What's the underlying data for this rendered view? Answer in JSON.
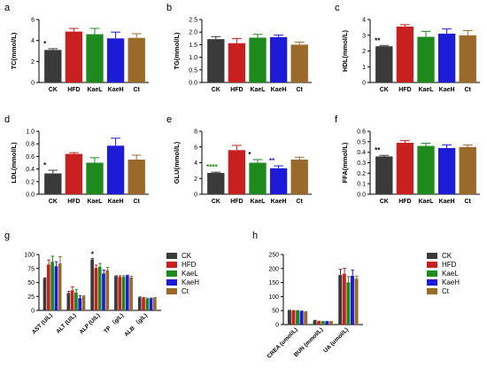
{
  "colors": {
    "CK": "#3a3a3a",
    "HFD": "#c8201e",
    "KaeL": "#1e8a1e",
    "KaeH": "#1c1cd6",
    "Ct": "#9a6a2a",
    "axis": "#000000",
    "star_black": "#000000",
    "star_green": "#1e8a1e",
    "star_blue": "#1c1cd6"
  },
  "chart_data": [
    {
      "id": "a",
      "panel_label": "a",
      "type": "bar",
      "categories": [
        "CK",
        "HFD",
        "KaeL",
        "KaeH",
        "Ct"
      ],
      "values": [
        3.1,
        4.85,
        4.6,
        4.2,
        4.25
      ],
      "errors": [
        0.12,
        0.3,
        0.55,
        0.6,
        0.4
      ],
      "ylabel": "TC(mmol/L)",
      "ylim": [
        0,
        6
      ],
      "yticks": [
        "0",
        "2",
        "4",
        "6"
      ],
      "tick_values": [
        0,
        2,
        4,
        6
      ],
      "annotations": [
        {
          "category": "CK",
          "text": "*",
          "color": "black"
        }
      ]
    },
    {
      "id": "b",
      "panel_label": "b",
      "type": "bar",
      "categories": [
        "CK",
        "HFD",
        "KaeL",
        "KaeH",
        "Ct"
      ],
      "values": [
        1.72,
        1.56,
        1.78,
        1.8,
        1.5
      ],
      "errors": [
        0.1,
        0.18,
        0.13,
        0.08,
        0.1
      ],
      "ylabel": "TG(mmol/L)",
      "ylim": [
        0,
        2.5
      ],
      "yticks": [
        "0.0",
        "0.5",
        "1.0",
        "1.5",
        "2.0",
        "2.5"
      ],
      "tick_values": [
        0,
        0.5,
        1,
        1.5,
        2,
        2.5
      ],
      "annotations": []
    },
    {
      "id": "c",
      "panel_label": "c",
      "type": "bar",
      "categories": [
        "CK",
        "HFD",
        "KaeL",
        "KaeH",
        "Ct"
      ],
      "values": [
        2.3,
        3.55,
        2.9,
        3.1,
        3.0
      ],
      "errors": [
        0.05,
        0.12,
        0.35,
        0.3,
        0.3
      ],
      "ylabel": "HDL(mmol/L)",
      "ylim": [
        0,
        4
      ],
      "yticks": [
        "0",
        "1",
        "2",
        "3",
        "4"
      ],
      "tick_values": [
        0,
        1,
        2,
        3,
        4
      ],
      "annotations": [
        {
          "category": "CK",
          "text": "**",
          "color": "black"
        }
      ]
    },
    {
      "id": "d",
      "panel_label": "d",
      "type": "bar",
      "categories": [
        "CK",
        "HFD",
        "KaeL",
        "KaeH",
        "Ct"
      ],
      "values": [
        0.33,
        0.64,
        0.5,
        0.77,
        0.55
      ],
      "errors": [
        0.05,
        0.02,
        0.08,
        0.12,
        0.07
      ],
      "ylabel": "LDL(mmol/L)",
      "ylim": [
        0,
        1.0
      ],
      "yticks": [
        "0.0",
        "0.2",
        "0.4",
        "0.6",
        "0.8",
        "1.0"
      ],
      "tick_values": [
        0,
        0.2,
        0.4,
        0.6,
        0.8,
        1.0
      ],
      "annotations": [
        {
          "category": "CK",
          "text": "*",
          "color": "black"
        }
      ]
    },
    {
      "id": "e",
      "panel_label": "e",
      "type": "bar",
      "categories": [
        "CK",
        "HFD",
        "KaeL",
        "KaeH",
        "Ct"
      ],
      "values": [
        2.7,
        5.6,
        4.0,
        3.3,
        4.4
      ],
      "errors": [
        0.1,
        0.6,
        0.4,
        0.3,
        0.3
      ],
      "ylabel": "GLU(mmol/L)",
      "ylim": [
        0,
        8
      ],
      "yticks": [
        "0",
        "2",
        "4",
        "6",
        "8"
      ],
      "tick_values": [
        0,
        2,
        4,
        6,
        8
      ],
      "annotations": [
        {
          "category": "CK",
          "text": "****",
          "color": "green"
        },
        {
          "category": "KaeL",
          "text": "*",
          "color": "black"
        },
        {
          "category": "KaeH",
          "text": "**",
          "color": "blue"
        }
      ]
    },
    {
      "id": "f",
      "panel_label": "f",
      "type": "bar",
      "categories": [
        "CK",
        "HFD",
        "KaeL",
        "KaeH",
        "Ct"
      ],
      "values": [
        0.36,
        0.49,
        0.46,
        0.44,
        0.45
      ],
      "errors": [
        0.01,
        0.02,
        0.025,
        0.03,
        0.02
      ],
      "ylabel": "FFA(mmol/L)",
      "ylim": [
        0,
        0.6
      ],
      "yticks": [
        "0.0",
        "0.1",
        "0.2",
        "0.3",
        "0.4",
        "0.5",
        "0.6"
      ],
      "tick_values": [
        0,
        0.1,
        0.2,
        0.3,
        0.4,
        0.5,
        0.6
      ],
      "annotations": [
        {
          "category": "CK",
          "text": "**",
          "color": "black"
        }
      ]
    },
    {
      "id": "g",
      "panel_label": "g",
      "type": "bar",
      "categories": [
        "AST (U/L)",
        "ALT (U/L)",
        "ALP (U/L)",
        "TP （g/L)",
        "ALB （g/L)"
      ],
      "series": [
        {
          "name": "CK",
          "values": [
            57,
            31,
            91,
            61,
            23
          ],
          "errors": [
            1,
            3,
            2,
            1,
            1
          ]
        },
        {
          "name": "HFD",
          "values": [
            82,
            36,
            76,
            60,
            22
          ],
          "errors": [
            8,
            6,
            5,
            2,
            1
          ]
        },
        {
          "name": "KaeL",
          "values": [
            87,
            32,
            78,
            60,
            21
          ],
          "errors": [
            10,
            5,
            6,
            2,
            1
          ]
        },
        {
          "name": "KaeH",
          "values": [
            79,
            22,
            66,
            62,
            21
          ],
          "errors": [
            8,
            4,
            6,
            1,
            1
          ]
        },
        {
          "name": "Ct",
          "values": [
            84,
            25,
            72,
            59,
            22
          ],
          "errors": [
            12,
            1,
            5,
            2,
            1
          ]
        }
      ],
      "ylabel": "",
      "ylim": [
        0,
        100
      ],
      "yticks": [
        "0",
        "25",
        "50",
        "75",
        "100"
      ],
      "tick_values": [
        0,
        25,
        50,
        75,
        100
      ],
      "annotations": [
        {
          "category": "ALP (U/L)",
          "series": "CK",
          "text": "*",
          "color": "black"
        }
      ],
      "legend": [
        "CK",
        "HFD",
        "KaeL",
        "KaeH",
        "Ct"
      ]
    },
    {
      "id": "h",
      "panel_label": "h",
      "type": "bar",
      "categories": [
        "CREA (umol/L)",
        "BUN (mmol/L)",
        "UA (umol/L)"
      ],
      "series": [
        {
          "name": "CK",
          "values": [
            50,
            14,
            177
          ],
          "errors": [
            1,
            1,
            20
          ]
        },
        {
          "name": "HFD",
          "values": [
            49,
            11,
            181
          ],
          "errors": [
            1,
            1,
            20
          ]
        },
        {
          "name": "KaeL",
          "values": [
            49,
            10,
            151
          ],
          "errors": [
            1,
            1,
            20
          ]
        },
        {
          "name": "KaeH",
          "values": [
            47,
            10,
            174
          ],
          "errors": [
            1,
            1,
            20
          ]
        },
        {
          "name": "Ct",
          "values": [
            45,
            10,
            164
          ],
          "errors": [
            1,
            1,
            8
          ]
        }
      ],
      "ylabel": "",
      "ylim": [
        0,
        250
      ],
      "yticks": [
        "0",
        "50",
        "100",
        "150",
        "200",
        "250"
      ],
      "tick_values": [
        0,
        50,
        100,
        150,
        200,
        250
      ],
      "annotations": [],
      "legend": [
        "CK",
        "HFD",
        "KaeL",
        "KaeH",
        "Ct"
      ]
    }
  ]
}
